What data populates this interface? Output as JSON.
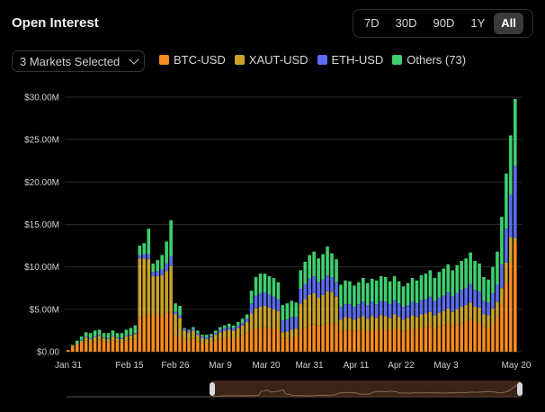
{
  "header": {
    "title": "Open Interest",
    "ranges": [
      "7D",
      "30D",
      "90D",
      "1Y",
      "All"
    ],
    "active_range": "All"
  },
  "filter": {
    "label": "3 Markets Selected"
  },
  "colors": {
    "btc": "#f68b1f",
    "xaut": "#c9a227",
    "eth": "#5b6cf0",
    "others": "#3ecf6f",
    "background": "#000000"
  },
  "chart_data": {
    "type": "bar",
    "stacked": true,
    "legend_placement": "top-left",
    "grid": true,
    "ylim": [
      0,
      30000000
    ],
    "y_ticks": [
      "$0.00",
      "$5.00M",
      "$10.00M",
      "$15.00M",
      "$20.00M",
      "$25.00M",
      "$30.00M"
    ],
    "x_ticks": [
      "Jan 31",
      "Feb 15",
      "Feb 26",
      "Mar 9",
      "Mar 20",
      "Mar 31",
      "Apr 11",
      "Apr 22",
      "May 3",
      "May 20"
    ],
    "legend": [
      "BTC-USD",
      "XAUT-USD",
      "ETH-USD",
      "Others (73)"
    ],
    "series": [
      {
        "name": "BTC-USD",
        "values": [
          0.2,
          0.6,
          0.8,
          1.0,
          1.3,
          1.1,
          1.2,
          1.4,
          1.2,
          1.1,
          1.3,
          1.2,
          1.1,
          1.3,
          1.4,
          1.5,
          4.0,
          4.2,
          4.3,
          4.4,
          4.3,
          4.2,
          4.5,
          4.6,
          2.0,
          1.8,
          1.5,
          1.4,
          1.5,
          1.2,
          1.0,
          0.9,
          1.1,
          1.3,
          1.5,
          1.6,
          1.7,
          1.6,
          1.8,
          2.0,
          2.2,
          2.5,
          2.7,
          2.8,
          2.9,
          2.8,
          2.7,
          2.6,
          1.5,
          1.6,
          1.7,
          1.8,
          2.6,
          2.8,
          3.1,
          3.2,
          3.0,
          3.1,
          3.3,
          3.4,
          3.2,
          2.4,
          2.6,
          2.5,
          2.4,
          2.5,
          2.6,
          2.4,
          2.6,
          2.5,
          2.7,
          2.6,
          2.5,
          2.8,
          2.6,
          2.4,
          2.5,
          2.7,
          2.6,
          2.8,
          2.9,
          3.0,
          2.7,
          2.9,
          3.1,
          3.3,
          3.0,
          3.2,
          3.4,
          3.6,
          3.8,
          3.5,
          3.4,
          2.9,
          2.8,
          3.5,
          4.2,
          5.5,
          8.0,
          10.5,
          13.0
        ]
      },
      {
        "name": "XAUT-USD",
        "values": [
          0.0,
          0.1,
          0.2,
          0.3,
          0.4,
          0.4,
          0.5,
          0.5,
          0.4,
          0.4,
          0.5,
          0.4,
          0.4,
          0.5,
          0.5,
          0.6,
          7.0,
          6.8,
          6.6,
          4.5,
          4.6,
          4.8,
          5.0,
          5.5,
          2.4,
          2.2,
          1.0,
          0.9,
          1.0,
          0.8,
          0.6,
          0.6,
          0.6,
          0.7,
          0.8,
          0.9,
          0.9,
          0.9,
          1.0,
          1.1,
          1.3,
          2.0,
          2.4,
          2.5,
          2.5,
          2.4,
          2.3,
          2.2,
          0.8,
          0.8,
          0.9,
          0.9,
          3.1,
          3.4,
          3.6,
          3.7,
          3.4,
          3.6,
          3.8,
          3.6,
          3.3,
          1.4,
          1.5,
          1.5,
          1.4,
          1.5,
          1.6,
          1.5,
          1.6,
          1.5,
          1.6,
          1.6,
          1.5,
          1.6,
          1.5,
          1.4,
          1.5,
          1.6,
          1.5,
          1.6,
          1.6,
          1.7,
          1.6,
          1.7,
          1.7,
          1.8,
          1.7,
          1.8,
          1.9,
          1.9,
          2.0,
          1.8,
          1.8,
          1.5,
          1.5,
          1.6,
          1.7,
          2.0,
          2.5,
          3.0,
          0.4
        ]
      },
      {
        "name": "ETH-USD",
        "values": [
          0.0,
          0.0,
          0.0,
          0.1,
          0.1,
          0.1,
          0.1,
          0.1,
          0.1,
          0.1,
          0.1,
          0.1,
          0.1,
          0.1,
          0.1,
          0.1,
          0.4,
          0.5,
          0.6,
          0.5,
          0.6,
          0.7,
          0.9,
          1.1,
          0.3,
          0.3,
          0.2,
          0.2,
          0.2,
          0.2,
          0.2,
          0.2,
          0.2,
          0.2,
          0.3,
          0.3,
          0.3,
          0.3,
          0.3,
          0.3,
          0.4,
          1.2,
          1.5,
          1.6,
          1.6,
          1.5,
          1.5,
          1.4,
          1.4,
          1.4,
          1.5,
          1.4,
          1.7,
          1.8,
          1.9,
          2.0,
          1.8,
          1.8,
          1.9,
          1.8,
          1.7,
          1.5,
          1.5,
          1.6,
          1.5,
          1.6,
          1.7,
          1.6,
          1.7,
          1.6,
          1.7,
          1.7,
          1.6,
          1.7,
          1.6,
          1.5,
          1.5,
          1.6,
          1.6,
          1.7,
          1.7,
          1.8,
          1.7,
          1.8,
          1.8,
          1.9,
          1.8,
          1.9,
          2.0,
          2.0,
          2.2,
          2.0,
          1.9,
          1.6,
          1.5,
          1.8,
          2.0,
          2.8,
          4.0,
          5.0,
          8.5
        ]
      },
      {
        "name": "Others (73)",
        "values": [
          0.0,
          0.1,
          0.3,
          0.4,
          0.5,
          0.6,
          0.7,
          0.6,
          0.5,
          0.6,
          0.6,
          0.5,
          0.6,
          0.7,
          0.8,
          0.9,
          1.1,
          1.3,
          3.0,
          1.0,
          1.3,
          1.7,
          2.6,
          4.3,
          1.0,
          1.1,
          0.1,
          0.1,
          0.2,
          0.3,
          0.2,
          0.3,
          0.2,
          0.3,
          0.3,
          0.3,
          0.4,
          0.3,
          0.4,
          0.5,
          0.5,
          1.5,
          2.2,
          2.3,
          2.2,
          2.2,
          2.2,
          2.0,
          1.8,
          1.9,
          1.9,
          1.7,
          2.2,
          2.6,
          2.8,
          2.9,
          2.8,
          3.0,
          3.4,
          2.8,
          2.7,
          2.6,
          2.8,
          2.7,
          2.5,
          2.6,
          2.8,
          2.6,
          2.7,
          2.8,
          2.9,
          2.9,
          2.7,
          2.8,
          2.6,
          2.4,
          2.6,
          2.8,
          2.7,
          2.9,
          3.0,
          3.1,
          2.7,
          3.0,
          3.2,
          3.3,
          3.1,
          3.3,
          3.4,
          3.5,
          3.7,
          3.4,
          3.3,
          2.8,
          2.7,
          3.1,
          3.9,
          5.6,
          6.5,
          7.0,
          7.9
        ]
      }
    ],
    "units": "USD millions"
  }
}
